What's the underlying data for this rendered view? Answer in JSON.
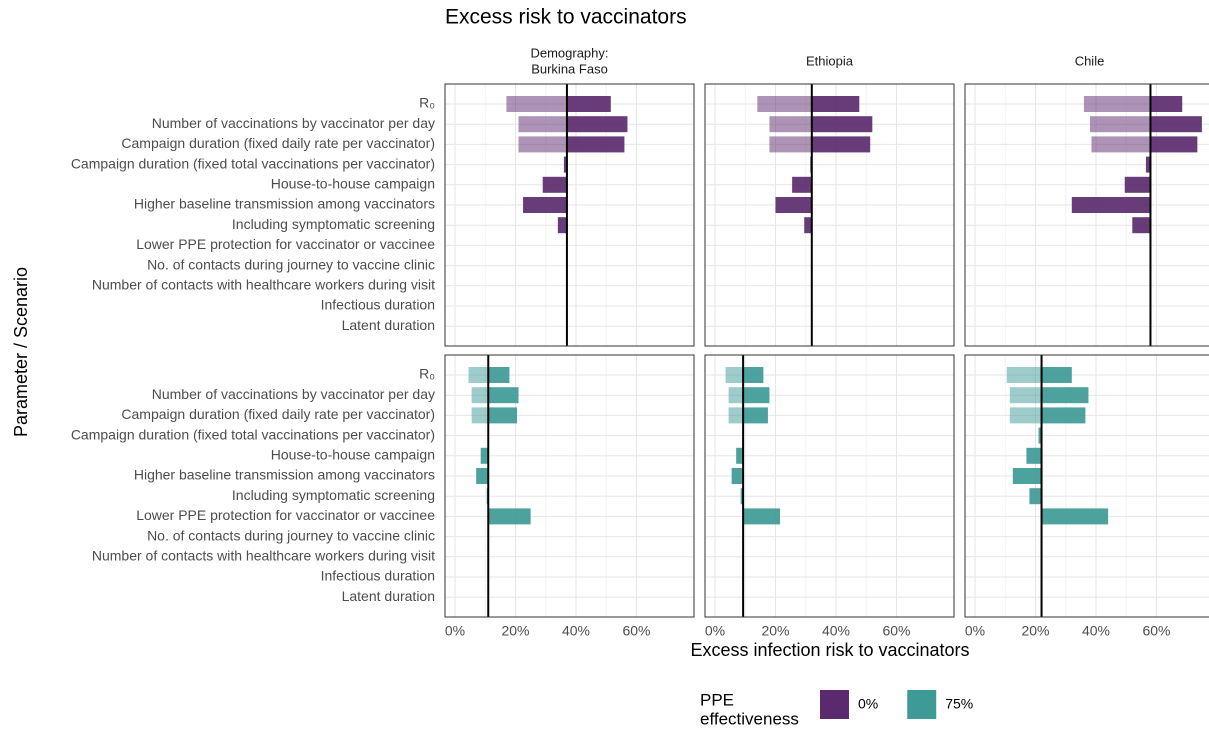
{
  "chart_data": {
    "type": "tornado",
    "title": "Excess risk to vaccinators",
    "xlabel": "Excess infection risk to vaccinators",
    "ylabel": "Parameter / Scenario",
    "strips": [
      [
        "Demography:",
        "Burkina Faso"
      ],
      [
        "Ethiopia"
      ],
      [
        "Chile"
      ]
    ],
    "categories": [
      "R₀",
      "Number of vaccinations by vaccinator per day",
      "Campaign duration (fixed daily rate per vaccinator)",
      "Campaign duration (fixed total vaccinations per vaccinator)",
      "House-to-house campaign",
      "Higher baseline transmission among vaccinators",
      "Including symptomatic screening",
      "Lower PPE protection for vaccinator or vaccinee",
      "No. of contacts during journey to vaccine clinic",
      "Number of contacts with healthcare workers during visit",
      "Infectious duration",
      "Latent duration"
    ],
    "xlim": [
      -3.3,
      79
    ],
    "xticks": [
      {
        "value": 0,
        "label": "0%"
      },
      {
        "value": 20,
        "label": "20%"
      },
      {
        "value": 40,
        "label": "40%"
      },
      {
        "value": 60,
        "label": "60%"
      }
    ],
    "grid": true,
    "legend_title": [
      "PPE",
      "effectiveness"
    ],
    "series": [
      {
        "name": "0%",
        "color": "#5b2a6e",
        "panels": [
          {
            "baseline": 37,
            "low": [
              17,
              21,
              21,
              null,
              null,
              null,
              null,
              null,
              null,
              null,
              null,
              null
            ],
            "high": [
              51.5,
              57,
              56,
              36,
              29,
              22.5,
              34,
              null,
              null,
              null,
              null,
              null
            ]
          },
          {
            "baseline": 32,
            "low": [
              14,
              18,
              18,
              null,
              null,
              null,
              null,
              null,
              null,
              null,
              null,
              null
            ],
            "high": [
              47.7,
              52,
              51.3,
              31.5,
              25.5,
              20,
              29.5,
              null,
              null,
              null,
              null,
              null
            ]
          },
          {
            "baseline": 58,
            "low": [
              36,
              38,
              38.5,
              null,
              null,
              null,
              null,
              null,
              null,
              null,
              null,
              null
            ],
            "high": [
              68.5,
              75,
              73.5,
              56.5,
              49.5,
              32,
              52,
              null,
              null,
              null,
              null,
              null
            ]
          }
        ]
      },
      {
        "name": "75%",
        "color": "#3e9a96",
        "panels": [
          {
            "baseline": 11,
            "low": [
              4.5,
              5.5,
              5.5,
              null,
              null,
              null,
              null,
              null,
              null,
              null,
              null,
              null
            ],
            "high": [
              18,
              21,
              20.5,
              null,
              8.5,
              7,
              10.5,
              25,
              null,
              null,
              null,
              null
            ]
          },
          {
            "baseline": 9.3,
            "low": [
              3.5,
              4.5,
              4.5,
              null,
              null,
              null,
              null,
              null,
              null,
              null,
              null,
              null
            ],
            "high": [
              16,
              18,
              17.5,
              null,
              7,
              5.5,
              8.5,
              21.5,
              null,
              null,
              null,
              null
            ]
          },
          {
            "baseline": 22,
            "low": [
              10.5,
              11.5,
              11.5,
              null,
              null,
              null,
              null,
              null,
              null,
              null,
              null,
              null
            ],
            "high": [
              32,
              37.5,
              36.5,
              21,
              17,
              12.5,
              18,
              44,
              null,
              null,
              null,
              null
            ]
          }
        ]
      }
    ]
  }
}
